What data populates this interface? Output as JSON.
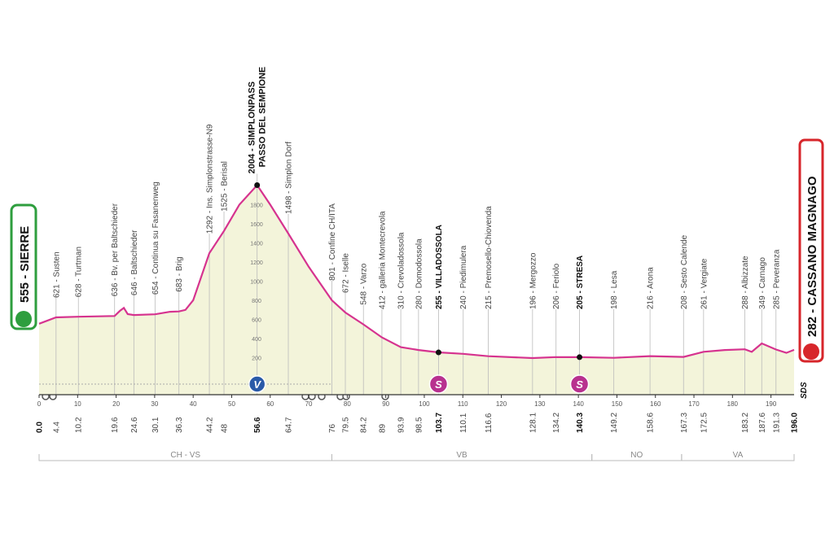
{
  "chart_data": {
    "type": "area",
    "x": [
      0,
      4.4,
      10.2,
      19.6,
      21,
      22,
      23,
      24.6,
      30.1,
      34,
      36.3,
      38,
      40,
      44.2,
      48,
      52,
      56.6,
      60,
      64.7,
      70,
      76,
      79.5,
      84.2,
      89,
      93.9,
      98.5,
      103.7,
      110.1,
      116.6,
      128.1,
      134.2,
      140.3,
      149.2,
      158.6,
      167.3,
      172.5,
      178,
      183.2,
      185,
      187.6,
      191.3,
      194,
      196
    ],
    "values": [
      555,
      621,
      628,
      636,
      690,
      720,
      655,
      646,
      654,
      680,
      683,
      700,
      800,
      1292,
      1525,
      1800,
      2004,
      1800,
      1498,
      1150,
      801,
      672,
      548,
      412,
      310,
      280,
      255,
      240,
      215,
      196,
      206,
      205,
      198,
      216,
      208,
      261,
      280,
      288,
      260,
      349,
      285,
      250,
      282
    ],
    "color": "#d6338f",
    "fill": "#f3f4da",
    "xlim": [
      0,
      196
    ],
    "ylim": [
      0,
      2000
    ],
    "xticks": [
      0,
      10,
      20,
      30,
      40,
      50,
      60,
      70,
      80,
      90,
      100,
      110,
      120,
      130,
      140,
      150,
      160,
      170,
      180,
      190
    ],
    "yticks": [
      200,
      400,
      600,
      800,
      1000,
      1200,
      1400,
      1600,
      1800
    ],
    "start": "555 - SIERRE",
    "finish": "282 - CASSANO MAGNAGO",
    "logo": "SDS",
    "waypoints": [
      {
        "km": {
          "value": 0,
          "label": "0.0"
        },
        "bold": true
      },
      {
        "km": 4.4,
        "label": "621 - Susten"
      },
      {
        "km": 10.2,
        "label": "628 - Turtman"
      },
      {
        "km": 19.6,
        "label": "636 - Bv. per Baltschieder"
      },
      {
        "km": 24.6,
        "label": "646 - Baltschieder"
      },
      {
        "km": 30.1,
        "label": "654 - Continua su Fasanenweg"
      },
      {
        "km": 36.3,
        "label": "683 - Brig"
      },
      {
        "km": 44.2,
        "label": "1292 - Ins. Simplonstrasse-N9"
      },
      {
        "km": 48.0,
        "label": "1525 - Berisal"
      },
      {
        "km": 56.6,
        "label": "2004 - SIMPLONPASS",
        "label2": "PASSO DEL SEMPIONE",
        "bold": true
      },
      {
        "km": 64.7,
        "label": "1498 - Simplon Dorf"
      },
      {
        "km": 76.0,
        "label": "801 - Confine CH/ITA"
      },
      {
        "km": 79.5,
        "label": "672 - Iselle"
      },
      {
        "km": 84.2,
        "label": "548 - Varzo"
      },
      {
        "km": 89.0,
        "label": "412 - galleria Montecrevola"
      },
      {
        "km": 93.9,
        "label": "310 - Crevoladossola"
      },
      {
        "km": 98.5,
        "label": "280 - Domodossola"
      },
      {
        "km": 103.7,
        "label": "255 - VILLADOSSOLA",
        "bold": true
      },
      {
        "km": 110.1,
        "label": "240 - Piedimulera"
      },
      {
        "km": 116.6,
        "label": "215 - Premosello-Chiovenda"
      },
      {
        "km": 128.1,
        "label": "196 - Mergozzo"
      },
      {
        "km": 134.2,
        "label": "206 - Feriolo"
      },
      {
        "km": 140.3,
        "label": "205 - STRESA",
        "bold": true
      },
      {
        "km": 149.2,
        "label": "198 - Lesa"
      },
      {
        "km": 158.6,
        "label": "216 - Arona"
      },
      {
        "km": 167.3,
        "label": "208 - Sesto Calende"
      },
      {
        "km": 172.5,
        "label": "261 - Vergiate"
      },
      {
        "km": 183.2,
        "label": "288 - Albizzate"
      },
      {
        "km": 187.6,
        "label": "349 - Carnago"
      },
      {
        "km": 191.3,
        "label": "285 - Peveranza"
      },
      {
        "km": {
          "value": 196,
          "label": "196.0"
        },
        "bold": true
      }
    ],
    "markers": [
      {
        "km": 56.6,
        "kind": "kom",
        "label": "V"
      },
      {
        "km": 103.7,
        "kind": "sprint",
        "label": "S"
      },
      {
        "km": 140.3,
        "kind": "sprint",
        "label": "S"
      }
    ],
    "regions": [
      {
        "label": "CH - VS",
        "from": 0,
        "to": 76
      },
      {
        "label": "VB",
        "from": 76,
        "to": 143.5
      },
      {
        "label": "NO",
        "from": 143.5,
        "to": 166.8
      },
      {
        "label": "VA",
        "from": 166.8,
        "to": 196
      }
    ]
  }
}
